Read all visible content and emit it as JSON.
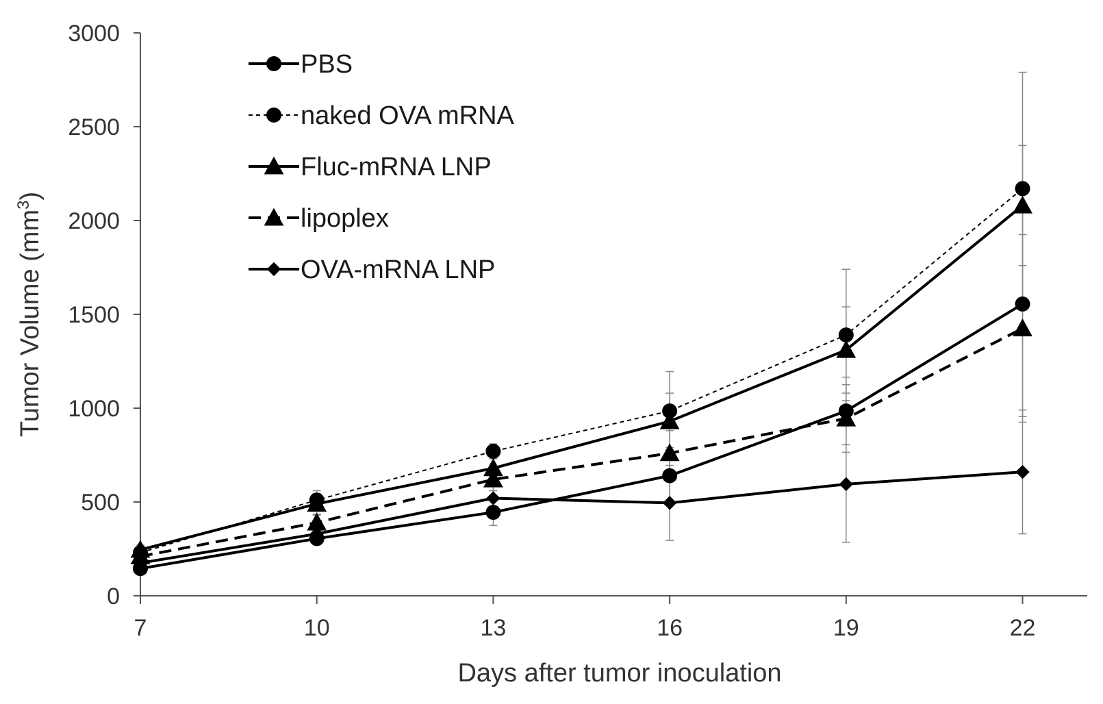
{
  "chart_data": {
    "type": "line",
    "title": "",
    "xlabel": "Days after tumor inoculation",
    "ylabel": "Tumor Volume (mm",
    "ylabel_superscript": "3",
    "ylabel_close": ")",
    "x": [
      7,
      10,
      13,
      16,
      19,
      22
    ],
    "xticks": [
      "7",
      "10",
      "13",
      "16",
      "19",
      "22"
    ],
    "xlim": [
      7,
      23.1
    ],
    "ylim": [
      0,
      3000
    ],
    "yticks": [
      "0",
      "500",
      "1000",
      "1500",
      "2000",
      "2500",
      "3000"
    ],
    "ytick_values": [
      0,
      500,
      1000,
      1500,
      2000,
      2500,
      3000
    ],
    "grid": false,
    "legend_position": "top-left",
    "series": [
      {
        "name": "PBS",
        "marker": "circle",
        "line": "solid",
        "color": "#000000",
        "values": [
          145,
          305,
          445,
          640,
          985,
          1555
        ],
        "errors": [
          20,
          30,
          70,
          150,
          180,
          600
        ]
      },
      {
        "name": "naked OVA mRNA",
        "marker": "circle",
        "line": "dotted",
        "color": "#000000",
        "values": [
          230,
          510,
          770,
          985,
          1390,
          2170
        ],
        "errors": [
          25,
          50,
          40,
          210,
          350,
          620
        ]
      },
      {
        "name": "Fluc-mRNA LNP",
        "marker": "triangle",
        "line": "solid",
        "color": "#000000",
        "values": [
          245,
          490,
          680,
          930,
          1310,
          2080
        ],
        "errors": [
          25,
          55,
          60,
          150,
          230,
          320
        ]
      },
      {
        "name": "lipoplex",
        "marker": "triangle",
        "line": "dashed",
        "color": "#000000",
        "values": [
          210,
          390,
          620,
          760,
          945,
          1425
        ],
        "errors": [
          25,
          40,
          60,
          120,
          180,
          500
        ]
      },
      {
        "name": "OVA-mRNA LNP",
        "marker": "diamond",
        "line": "solid",
        "color": "#000000",
        "values": [
          175,
          330,
          520,
          495,
          595,
          660
        ],
        "errors": [
          20,
          35,
          80,
          200,
          310,
          330
        ]
      }
    ]
  }
}
